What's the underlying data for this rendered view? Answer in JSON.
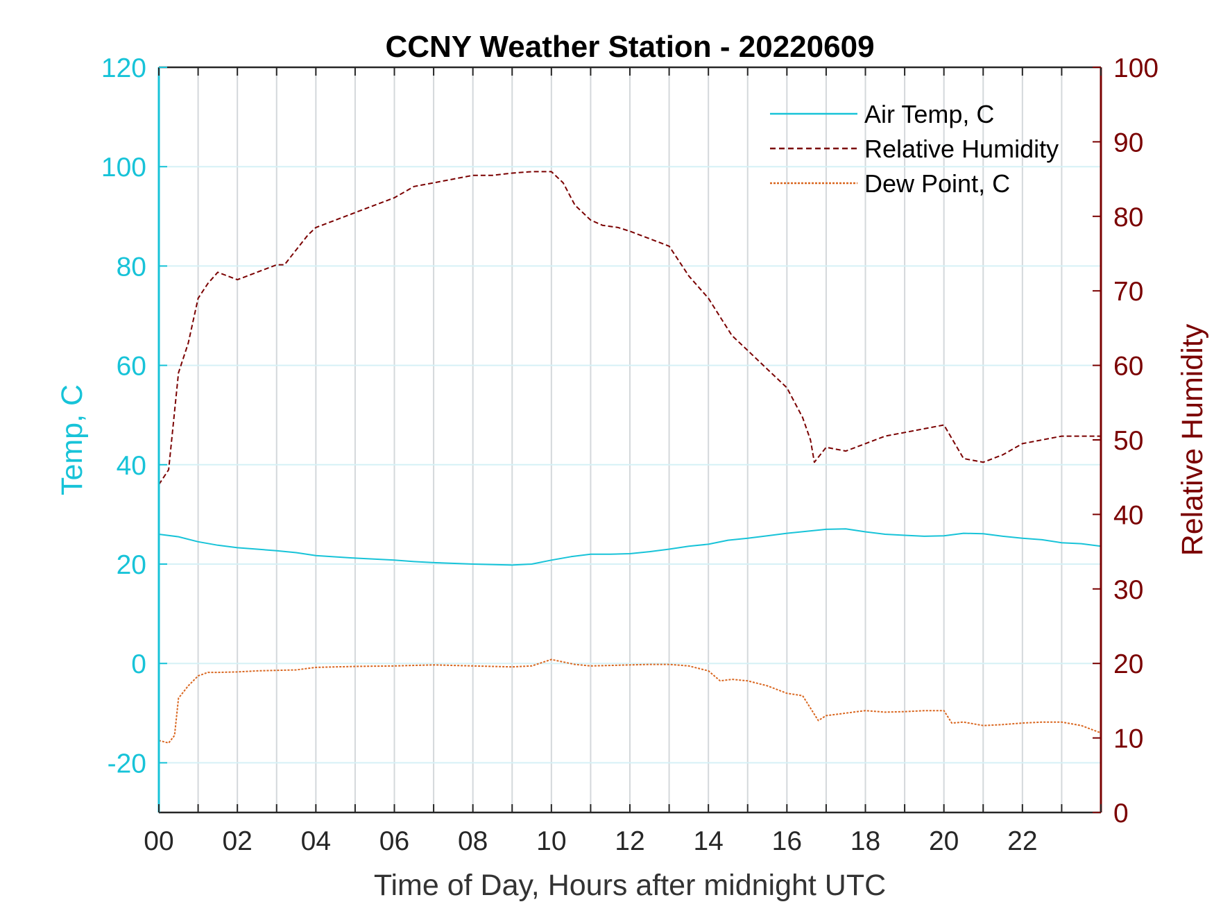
{
  "chart_data": {
    "type": "line",
    "title": "CCNY Weather Station - 20220609",
    "xlabel": "Time of Day, Hours after midnight UTC",
    "ylabel_left": "Temp, C",
    "ylabel_right": "Relative Humidity",
    "xlim": [
      0,
      24
    ],
    "ylim_left": [
      -30,
      120
    ],
    "ylim_right": [
      0,
      100
    ],
    "x_ticks": [
      "00",
      "02",
      "04",
      "06",
      "08",
      "10",
      "12",
      "14",
      "16",
      "18",
      "20",
      "22"
    ],
    "y_left_ticks": [
      "-20",
      "0",
      "20",
      "40",
      "60",
      "80",
      "100",
      "120"
    ],
    "y_right_ticks": [
      "0",
      "10",
      "20",
      "30",
      "40",
      "50",
      "60",
      "70",
      "80",
      "90",
      "100"
    ],
    "grid": "vertical every hour, horizontal at left ticks",
    "legend_position": "top-right",
    "colors": {
      "air_temp": "#17c3d8",
      "relative_humidity": "#7a0000",
      "dew_point": "#d9661f",
      "left_axis": "#17c3d8",
      "right_axis": "#7a0000"
    },
    "series": [
      {
        "name": "Air Temp, C",
        "axis": "left",
        "style": "solid",
        "x": [
          0,
          0.5,
          1,
          1.5,
          2,
          2.5,
          3,
          3.5,
          4,
          5,
          6,
          6.5,
          7,
          8,
          9,
          9.5,
          10,
          10.5,
          11,
          11.5,
          12,
          12.5,
          13,
          13.5,
          14,
          14.5,
          15,
          15.5,
          16,
          16.5,
          17,
          17.5,
          18,
          18.5,
          19,
          19.5,
          20,
          20.5,
          21,
          21.5,
          22,
          22.5,
          23,
          23.5,
          24
        ],
        "y": [
          26,
          25.5,
          24.5,
          23.8,
          23.3,
          23,
          22.7,
          22.3,
          21.7,
          21.2,
          20.8,
          20.5,
          20.3,
          20,
          19.8,
          20,
          20.8,
          21.5,
          22,
          22,
          22.1,
          22.5,
          23,
          23.6,
          24,
          24.8,
          25.2,
          25.7,
          26.2,
          26.6,
          27,
          27.1,
          26.5,
          26,
          25.8,
          25.6,
          25.7,
          26.2,
          26.1,
          25.6,
          25.2,
          24.9,
          24.3,
          24.1,
          23.6
        ]
      },
      {
        "name": "Relative Humidity",
        "axis": "right",
        "style": "dashed",
        "x": [
          0,
          0.25,
          0.5,
          0.75,
          1,
          1.25,
          1.5,
          2,
          2.5,
          3,
          3.2,
          3.5,
          3.8,
          4,
          4.5,
          5,
          5.5,
          6,
          6.5,
          7,
          7.5,
          8,
          8.5,
          9,
          9.5,
          10,
          10.3,
          10.6,
          11,
          11.3,
          11.7,
          12,
          12.5,
          13,
          13.5,
          14,
          14.3,
          14.6,
          15,
          15.5,
          16,
          16.4,
          16.6,
          16.7,
          17,
          17.5,
          18,
          18.5,
          19,
          19.5,
          20,
          20.5,
          21,
          21.5,
          22,
          22.5,
          23,
          23.5,
          24
        ],
        "y": [
          44,
          46,
          59,
          63,
          69,
          71,
          72.5,
          71.5,
          72.5,
          73.5,
          73.5,
          75.5,
          77.5,
          78.5,
          79.5,
          80.5,
          81.5,
          82.5,
          84,
          84.5,
          85,
          85.5,
          85.5,
          85.8,
          86,
          86,
          84.5,
          81.5,
          79.5,
          78.8,
          78.5,
          78,
          77,
          76,
          72,
          69,
          66.5,
          64,
          62,
          59.5,
          57,
          53,
          50,
          47,
          49,
          48.5,
          49.5,
          50.5,
          51,
          51.5,
          52,
          47.5,
          47,
          48,
          49.5,
          50,
          50.5,
          50.5,
          50.5
        ]
      },
      {
        "name": "Dew Point, C",
        "axis": "left",
        "style": "dotted",
        "x": [
          0,
          0.25,
          0.4,
          0.5,
          0.75,
          1,
          1.25,
          1.5,
          2,
          2.5,
          3,
          3.5,
          4,
          5,
          6,
          7,
          8,
          8.5,
          9,
          9.5,
          10,
          10.3,
          10.6,
          11,
          11.5,
          12,
          12.5,
          13,
          13.5,
          14,
          14.3,
          14.6,
          15,
          15.5,
          16,
          16.4,
          16.6,
          16.8,
          17,
          17.5,
          18,
          18.5,
          19,
          19.5,
          20,
          20.2,
          20.5,
          21,
          21.5,
          22,
          22.5,
          23,
          23.5,
          24
        ],
        "y": [
          -15.5,
          -16,
          -14.5,
          -7,
          -4.5,
          -2.5,
          -1.8,
          -1.8,
          -1.7,
          -1.5,
          -1.4,
          -1.3,
          -0.8,
          -0.6,
          -0.5,
          -0.3,
          -0.5,
          -0.6,
          -0.7,
          -0.5,
          0.8,
          0.3,
          -0.2,
          -0.5,
          -0.4,
          -0.3,
          -0.2,
          -0.2,
          -0.5,
          -1.5,
          -3.5,
          -3.2,
          -3.5,
          -4.5,
          -6,
          -6.5,
          -9,
          -11.5,
          -10.5,
          -10,
          -9.5,
          -9.8,
          -9.7,
          -9.5,
          -9.5,
          -12,
          -11.8,
          -12.5,
          -12.3,
          -12,
          -11.8,
          -11.8,
          -12.5,
          -14
        ]
      }
    ]
  }
}
